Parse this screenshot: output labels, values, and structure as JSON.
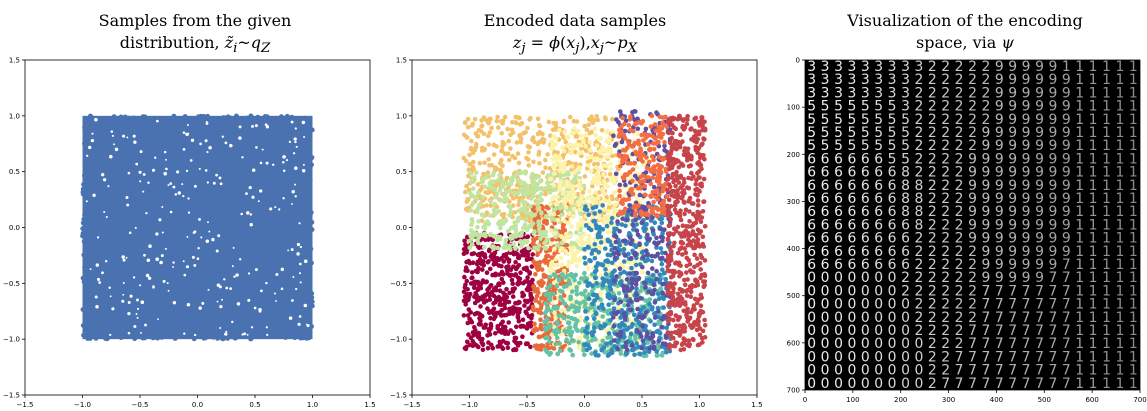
{
  "panels": [
    {
      "title_line1": "Samples from the given",
      "title_line2": "distribution, z̃ᵢ ~ q_Z",
      "title_line2_html": "distribution, <i>z̃<sub>i</sub></i>~<i>q<sub>Z</sub></i>"
    },
    {
      "title_line1": "Encoded data samples",
      "title_line2": "z_j = ϕ(x_j), x_j ~ p_X",
      "title_line2_html": "<i>z<sub>j</sub></i> = <i>ϕ</i>(<i>x<sub>j</sub></i>),<i>x<sub>j</sub></i>~<i>p<sub>X</sub></i>"
    },
    {
      "title_line1": "Visualization of the encoding",
      "title_line2": "space, via ψ",
      "title_line2_html": "space, via <i>ψ</i>"
    }
  ],
  "chart_data": [
    {
      "type": "scatter",
      "title": "Samples from the given distribution, z̃ᵢ ~ q_Z",
      "xlim": [
        -1.5,
        1.5
      ],
      "ylim": [
        -1.5,
        1.5
      ],
      "x_ticks": [
        "−1.5",
        "−1.0",
        "−0.5",
        "0.0",
        "0.5",
        "1.0",
        "1.5"
      ],
      "y_ticks": [
        "1.5",
        "1.0",
        "0.5",
        "0.0",
        "−0.5",
        "−1.0",
        "−1.5"
      ],
      "series": [
        {
          "distribution": "uniform",
          "x_range": [
            -1.0,
            1.0
          ],
          "y_range": [
            -1.0,
            1.0
          ],
          "color": "#4a72b0"
        }
      ],
      "grid": false
    },
    {
      "type": "scatter",
      "title": "Encoded data samples z_j = ϕ(x_j), x_j ~ p_X",
      "xlim": [
        -1.5,
        1.5
      ],
      "ylim": [
        -1.5,
        1.5
      ],
      "x_ticks": [
        "−1.5",
        "−1.0",
        "−0.5",
        "0.0",
        "0.5",
        "1.0",
        "1.5"
      ],
      "y_ticks": [
        "1.5",
        "1.0",
        "0.5",
        "0.0",
        "−0.5",
        "−1.0",
        "−1.5"
      ],
      "series": [
        {
          "color": "#f4c16b",
          "x_range": [
            -1.05,
            0.3
          ],
          "y_range": [
            0.05,
            1.0
          ]
        },
        {
          "color": "#9e0142",
          "x_range": [
            -1.05,
            -0.45
          ],
          "y_range": [
            -1.1,
            -0.05
          ]
        },
        {
          "color": "#e86b3a",
          "x_range": [
            -0.45,
            -0.15
          ],
          "y_range": [
            -1.1,
            0.2
          ]
        },
        {
          "color": "#c0e5a0",
          "x_range": [
            -1.0,
            0.0
          ],
          "y_range": [
            -0.2,
            0.5
          ]
        },
        {
          "color": "#fdf3a8",
          "x_range": [
            -0.3,
            0.55
          ],
          "y_range": [
            -1.1,
            0.9
          ]
        },
        {
          "color": "#66c2a5",
          "x_range": [
            -0.35,
            0.7
          ],
          "y_range": [
            -1.15,
            -0.4
          ]
        },
        {
          "color": "#3288bd",
          "x_range": [
            0.0,
            0.75
          ],
          "y_range": [
            -1.15,
            0.2
          ]
        },
        {
          "color": "#5e4fa2",
          "x_range": [
            0.25,
            0.75
          ],
          "y_range": [
            -1.1,
            1.05
          ]
        },
        {
          "color": "#f46d43",
          "x_range": [
            0.3,
            0.72
          ],
          "y_range": [
            0.1,
            1.0
          ]
        },
        {
          "color": "#c7444a",
          "x_range": [
            0.72,
            1.05
          ],
          "y_range": [
            -1.1,
            1.0
          ]
        }
      ],
      "grid": false
    },
    {
      "type": "image_grid",
      "title": "Visualization of the encoding space, via ψ",
      "xlim": [
        0,
        700
      ],
      "ylim": [
        700,
        0
      ],
      "x_ticks": [
        "0",
        "100",
        "200",
        "300",
        "400",
        "500",
        "600",
        "700"
      ],
      "y_ticks": [
        "0",
        "100",
        "200",
        "300",
        "400",
        "500",
        "600",
        "700"
      ],
      "grid_size": 25,
      "digit_rows": [
        "3333333332222299999111111",
        "3333333322222299999911111",
        "3333333322222299999911111",
        "5555555322222299999911111",
        "5555555522222299999911111",
        "5555555522222999999911111",
        "5555555522222999999911111",
        "6666665522229999999911111",
        "6666666822229999999911111",
        "6666666882229999999911111",
        "6666666882229999999911111",
        "6666666882229999999911111",
        "6666666682229999999911111",
        "6666666622229999999911111",
        "6666666622222999999911111",
        "6666666622222999999711111",
        "0000000222222999997711111",
        "0000000222222777777711111",
        "0000000022222777777711111",
        "0000000022222777777711111",
        "0000000022227777777711111",
        "0000000002227777777711111",
        "0000000002277777777711111",
        "0000000002277777777711111",
        "0000000002777777777711111"
      ]
    }
  ]
}
